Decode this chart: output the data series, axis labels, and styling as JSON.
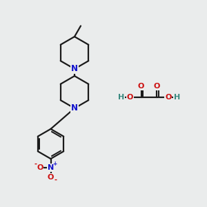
{
  "bg_color": "#eaecec",
  "line_color": "#1a1a1a",
  "N_color": "#1010cc",
  "O_color": "#cc1010",
  "H_color": "#3a8a80",
  "bond_lw": 1.6,
  "font_size_atom": 8.5,
  "xlim": [
    0,
    10
  ],
  "ylim": [
    0,
    10
  ]
}
